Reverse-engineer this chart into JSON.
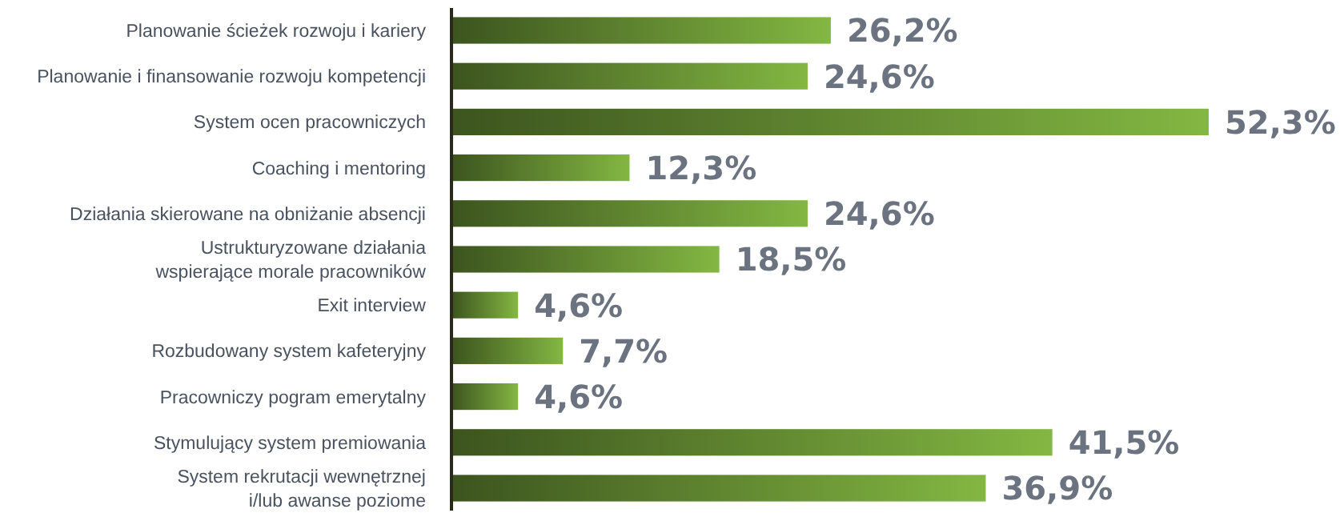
{
  "chart_data": {
    "type": "bar",
    "orientation": "horizontal",
    "color": "#5f8530",
    "categories": [
      "Planowanie ścieżek rozwoju i kariery",
      "Planowanie i finansowanie rozwoju kompetencji",
      "System ocen pracowniczych",
      "Coaching i mentoring",
      "Działania skierowane na obniżanie absencji",
      "Ustrukturyzowane działania\nwspierające morale pracowników",
      "Exit interview",
      "Rozbudowany system kafeteryjny",
      "Pracowniczy pogram emerytalny",
      "Stymulujący system premiowania",
      "System rekrutacji wewnętrznej\ni/lub awanse poziome"
    ],
    "values": [
      26.2,
      24.6,
      52.3,
      12.3,
      24.6,
      18.5,
      4.6,
      7.7,
      4.6,
      41.5,
      36.9
    ],
    "value_labels": [
      "26,2%",
      "24,6%",
      "52,3%",
      "12,3%",
      "24,6%",
      "18,5%",
      "4,6%",
      "7,7%",
      "4,6%",
      "41,5%",
      "36,9%"
    ]
  }
}
